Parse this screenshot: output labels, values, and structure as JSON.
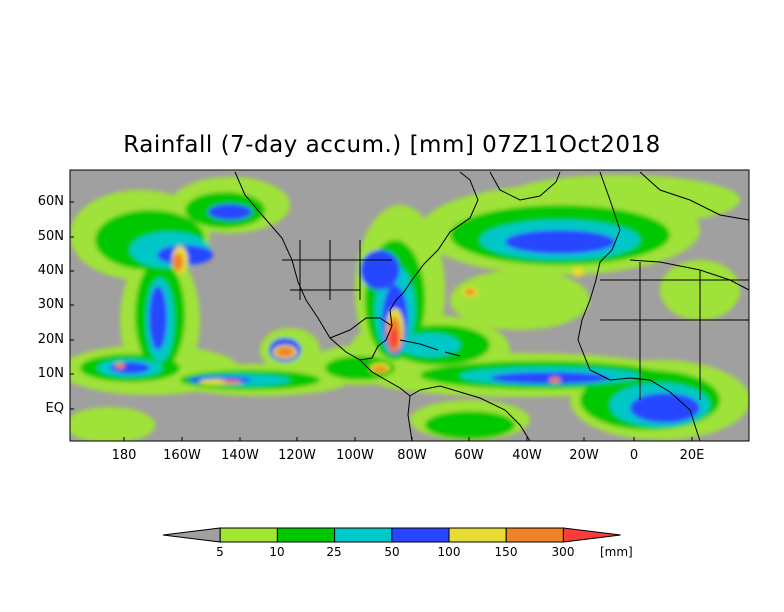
{
  "title": "Rainfall (7-day accum.) [mm] 07Z11Oct2018",
  "lat_labels": [
    "60N",
    "50N",
    "40N",
    "30N",
    "20N",
    "10N",
    "EQ"
  ],
  "lon_labels": [
    "180",
    "160W",
    "140W",
    "120W",
    "100W",
    "80W",
    "60W",
    "40W",
    "20W",
    "0",
    "20E"
  ],
  "colorbar": {
    "unit": "[mm]",
    "thresholds": [
      "5",
      "10",
      "25",
      "50",
      "100",
      "150",
      "300"
    ],
    "colors": [
      "#a0a0a0",
      "#a0e632",
      "#00c800",
      "#00c8c8",
      "#2846ff",
      "#e6dc32",
      "#f08228",
      "#fa3c3c"
    ]
  },
  "colors": {
    "ocean_background": "#a0a0a0",
    "coastline": "#000000"
  }
}
